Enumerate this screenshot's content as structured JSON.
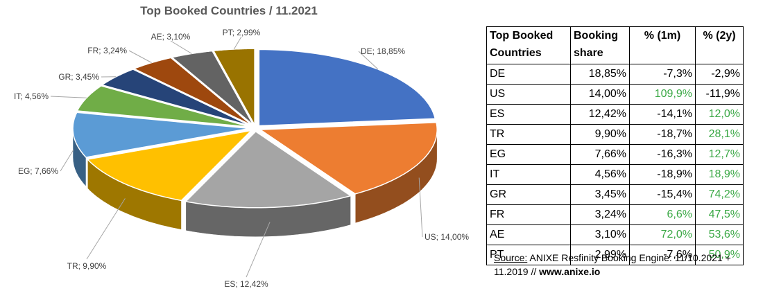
{
  "title": "Top Booked Countries / 11.2021",
  "colors": {
    "DE": "#4472c4",
    "US": "#ed7d31",
    "ES": "#a5a5a5",
    "TR": "#ffc000",
    "EG": "#5b9bd5",
    "IT": "#70ad47",
    "GR": "#264478",
    "FR": "#9e480e",
    "AE": "#636363",
    "PT": "#997300",
    "positive_text": "#3aa845"
  },
  "chart_data": {
    "type": "pie",
    "title": "Top Booked Countries / 11.2021",
    "categories": [
      "DE",
      "US",
      "ES",
      "TR",
      "EG",
      "IT",
      "GR",
      "FR",
      "AE",
      "PT"
    ],
    "values": [
      18.85,
      14.0,
      12.42,
      9.9,
      7.66,
      4.56,
      3.45,
      3.24,
      3.1,
      2.99
    ],
    "labels": [
      "DE; 18,85%",
      "US; 14,00%",
      "ES; 12,42%",
      "TR; 9,90%",
      "EG; 7,66%",
      "IT; 4,56%",
      "GR; 3,45%",
      "FR; 3,24%",
      "AE; 3,10%",
      "PT; 2,99%"
    ],
    "style": "3d-exploded"
  },
  "table": {
    "headers": [
      "Top Booked Countries",
      "Booking share",
      "% (1m)",
      "% (2y)"
    ],
    "rows": [
      {
        "country": "DE",
        "share": "18,85%",
        "m1": "-7,3%",
        "y2": "-2,9%"
      },
      {
        "country": "US",
        "share": "14,00%",
        "m1": "109,9%",
        "y2": "-11,9%"
      },
      {
        "country": "ES",
        "share": "12,42%",
        "m1": "-14,1%",
        "y2": "12,0%"
      },
      {
        "country": "TR",
        "share": "9,90%",
        "m1": "-18,7%",
        "y2": "28,1%"
      },
      {
        "country": "EG",
        "share": "7,66%",
        "m1": "-16,3%",
        "y2": "12,7%"
      },
      {
        "country": "IT",
        "share": "4,56%",
        "m1": "-18,9%",
        "y2": "18,9%"
      },
      {
        "country": "GR",
        "share": "3,45%",
        "m1": "-15,4%",
        "y2": "74,2%"
      },
      {
        "country": "FR",
        "share": "3,24%",
        "m1": "6,6%",
        "y2": "47,5%"
      },
      {
        "country": "AE",
        "share": "3,10%",
        "m1": "72,0%",
        "y2": "53,6%"
      },
      {
        "country": "PT",
        "share": "2,99%",
        "m1": "-7,6%",
        "y2": "50,9%"
      }
    ]
  },
  "source": {
    "label": "Source:",
    "text": " ANIXE Resfinity Booking Engine: 11/10.2021 + 11.2019 // ",
    "link": "www.anixe.io"
  }
}
